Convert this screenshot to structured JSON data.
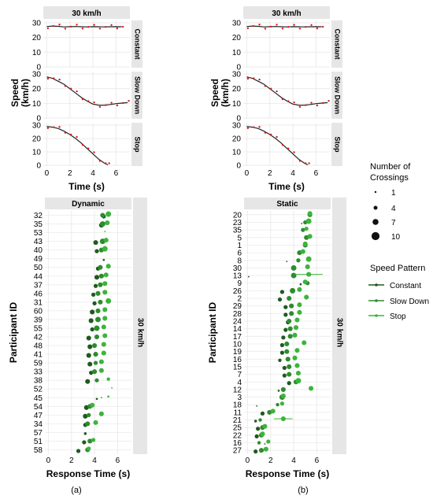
{
  "colors": {
    "strip": "#e6e6e6",
    "grid": "#ebebeb",
    "speed_fit": "#222222",
    "speed_points": "#d81b1b",
    "constant": "#1f5a1f",
    "slow_down": "#2e8b2e",
    "stop": "#3cb43c"
  },
  "legend": {
    "size_title_1": "Number of",
    "size_title_2": "Crossings",
    "size_labels": [
      "1",
      "4",
      "7",
      "10"
    ],
    "pattern_title": "Speed Pattern",
    "pattern_labels": [
      "Constant",
      "Slow Down",
      "Stop"
    ]
  },
  "captions": [
    "(a)",
    "(b)"
  ],
  "chart_data": [
    {
      "type": "line",
      "panel": "(a) top",
      "title": "30 km/h",
      "xlabel": "Time (s)",
      "ylabel": "Speed (km/h)",
      "facets": [
        "Constant",
        "Slow Down",
        "Stop"
      ],
      "xlim": [
        -0.3,
        7.2
      ],
      "ylim": [
        0,
        30
      ],
      "xticks": [
        "0",
        "2",
        "4",
        "6"
      ],
      "yticks": [
        "0",
        "10",
        "20",
        "30"
      ],
      "series": [
        {
          "facet": "Constant",
          "x": [
            0,
            0.5,
            1,
            1.5,
            2,
            2.5,
            3,
            3.5,
            4,
            4.5,
            5,
            5.5,
            6,
            6.5
          ],
          "values": [
            27.5,
            27.8,
            27.6,
            27.2,
            27.4,
            27.5,
            27.3,
            27.2,
            27.4,
            27.3,
            27.2,
            27.3,
            27.4,
            27.3
          ]
        },
        {
          "facet": "Slow Down",
          "x": [
            0,
            0.5,
            1,
            1.5,
            2,
            2.5,
            3,
            3.5,
            4,
            4.5,
            5,
            5.5,
            6,
            6.5,
            7
          ],
          "values": [
            28,
            27,
            25,
            23,
            20,
            17,
            14,
            11.5,
            9.5,
            8.8,
            8.8,
            9.2,
            9.8,
            10.2,
            10.5
          ]
        },
        {
          "facet": "Stop",
          "x": [
            0,
            0.5,
            1,
            1.5,
            2,
            2.5,
            3,
            3.5,
            4,
            4.5,
            5,
            5.3
          ],
          "values": [
            29,
            28.5,
            27.5,
            25.5,
            23,
            20,
            16.5,
            12.5,
            8.5,
            4.5,
            1.5,
            0.3
          ]
        }
      ]
    },
    {
      "type": "line",
      "panel": "(b) top",
      "title": "30 km/h",
      "xlabel": "Time (s)",
      "ylabel": "Speed (km/h)",
      "facets": [
        "Constant",
        "Slow Down",
        "Stop"
      ],
      "xlim": [
        -0.3,
        7.2
      ],
      "ylim": [
        0,
        30
      ],
      "xticks": [
        "0",
        "2",
        "4",
        "6"
      ],
      "yticks": [
        "0",
        "10",
        "20",
        "30"
      ],
      "series": [
        {
          "facet": "Constant",
          "x": [
            0,
            0.5,
            1,
            1.5,
            2,
            2.5,
            3,
            3.5,
            4,
            4.5,
            5,
            5.5,
            6,
            6.5
          ],
          "values": [
            27.5,
            27.8,
            27.6,
            27.2,
            27.4,
            27.5,
            27.3,
            27.2,
            27.4,
            27.3,
            27.2,
            27.3,
            27.4,
            27.3
          ]
        },
        {
          "facet": "Slow Down",
          "x": [
            0,
            0.5,
            1,
            1.5,
            2,
            2.5,
            3,
            3.5,
            4,
            4.5,
            5,
            5.5,
            6,
            6.5,
            7
          ],
          "values": [
            28,
            27,
            25,
            23,
            20,
            17,
            14,
            11.5,
            9.5,
            8.8,
            8.8,
            9.2,
            9.8,
            10.2,
            10.5
          ]
        },
        {
          "facet": "Stop",
          "x": [
            0,
            0.5,
            1,
            1.5,
            2,
            2.5,
            3,
            3.5,
            4,
            4.5,
            5,
            5.3
          ],
          "values": [
            29,
            28.5,
            27.5,
            25.5,
            23,
            20,
            16.5,
            12.5,
            8.5,
            4.5,
            1.5,
            0.3
          ]
        }
      ]
    },
    {
      "type": "scatter",
      "panel": "(a) bottom",
      "title": "Dynamic",
      "facet_label": "30 km/h",
      "xlabel": "Response Time (s)",
      "ylabel": "Participant ID",
      "xlim": [
        -0.3,
        7.2
      ],
      "xticks": [
        "0",
        "2",
        "4",
        "6"
      ],
      "categories": [
        "32",
        "35",
        "53",
        "43",
        "40",
        "49",
        "50",
        "44",
        "37",
        "46",
        "31",
        "60",
        "39",
        "55",
        "42",
        "48",
        "41",
        "59",
        "33",
        "38",
        "52",
        "45",
        "54",
        "47",
        "34",
        "57",
        "51",
        "58"
      ],
      "series": [
        {
          "name": "Constant",
          "values": [
            4.8,
            4.6,
            null,
            4.1,
            4.2,
            4.8,
            4.3,
            4.2,
            4.1,
            3.9,
            4.0,
            3.8,
            3.7,
            3.8,
            3.5,
            3.6,
            3.5,
            3.6,
            3.7,
            3.4,
            null,
            4.2,
            3.3,
            3.2,
            3.2,
            3.2,
            3.1,
            2.6
          ],
          "counts": [
            5,
            6,
            0,
            6,
            5,
            2,
            5,
            6,
            5,
            5,
            5,
            6,
            6,
            5,
            6,
            6,
            6,
            6,
            5,
            6,
            0,
            2,
            6,
            6,
            5,
            3,
            5,
            5
          ]
        },
        {
          "name": "Slow Down",
          "values": [
            4.7,
            4.7,
            null,
            4.7,
            4.6,
            4.7,
            4.5,
            4.6,
            4.5,
            4.3,
            4.5,
            4.3,
            4.3,
            4.2,
            4.2,
            4.0,
            4.1,
            4.1,
            4.0,
            4.2,
            null,
            4.6,
            3.6,
            3.5,
            3.4,
            3.3,
            3.6,
            3.4
          ],
          "counts": [
            6,
            7,
            0,
            7,
            6,
            0,
            6,
            6,
            6,
            6,
            6,
            6,
            7,
            7,
            6,
            6,
            6,
            5,
            6,
            5,
            0,
            1,
            6,
            5,
            6,
            0,
            6,
            6
          ]
        },
        {
          "name": "Stop",
          "values": [
            5.2,
            5.1,
            4.9,
            5.0,
            4.9,
            null,
            5.2,
            5.0,
            4.9,
            4.9,
            5.2,
            4.9,
            4.9,
            4.8,
            4.9,
            4.8,
            4.8,
            4.6,
            4.6,
            5.2,
            5.5,
            5.2,
            3.8,
            4.6,
            4.1,
            null,
            3.9,
            3.5
          ],
          "counts": [
            7,
            6,
            1,
            6,
            7,
            0,
            6,
            6,
            6,
            6,
            7,
            6,
            6,
            6,
            6,
            6,
            6,
            6,
            6,
            4,
            1,
            2,
            6,
            6,
            6,
            0,
            5,
            5
          ]
        }
      ]
    },
    {
      "type": "scatter",
      "panel": "(b) bottom",
      "title": "Static",
      "facet_label": "30 km/h",
      "xlabel": "Response Time (s)",
      "ylabel": "Participant ID",
      "xlim": [
        -0.3,
        7.2
      ],
      "xticks": [
        "0",
        "2",
        "4",
        "6"
      ],
      "categories": [
        "20",
        "23",
        "35",
        "5",
        "1",
        "6",
        "8",
        "30",
        "13",
        "9",
        "26",
        "2",
        "29",
        "28",
        "24",
        "14",
        "17",
        "10",
        "19",
        "16",
        "15",
        "7",
        "4",
        "12",
        "3",
        "18",
        "11",
        "21",
        "25",
        "22",
        "16",
        "27"
      ],
      "series": [
        {
          "name": "Constant",
          "values": [
            null,
            4.7,
            null,
            null,
            null,
            null,
            3.4,
            null,
            0.1,
            4.6,
            3.0,
            2.8,
            3.3,
            3.3,
            3.5,
            3.3,
            3.1,
            3.0,
            3.0,
            2.8,
            3.2,
            3.2,
            3.6,
            2.7,
            null,
            0.8,
            1.3,
            0.7,
            0.9,
            0.8,
            1.5,
            0.7
          ],
          "counts": [
            0,
            1,
            0,
            0,
            0,
            0,
            1,
            0,
            1,
            2,
            5,
            5,
            5,
            5,
            5,
            5,
            5,
            5,
            5,
            4,
            5,
            5,
            5,
            2,
            0,
            1,
            5,
            3,
            5,
            5,
            1,
            5
          ]
        },
        {
          "name": "Slow Down",
          "values": [
            5.4,
            5.0,
            4.8,
            5.1,
            5.0,
            4.5,
            4.4,
            4.0,
            4.0,
            5.2,
            3.9,
            3.6,
            3.8,
            3.8,
            3.6,
            3.7,
            3.7,
            3.4,
            3.4,
            3.5,
            3.6,
            3.6,
            4.2,
            3.1,
            3.0,
            2.6,
            1.9,
            1.1,
            1.3,
            1.2,
            1.0,
            1.2
          ],
          "counts": [
            6,
            5,
            5,
            6,
            6,
            6,
            5,
            7,
            7,
            5,
            7,
            6,
            6,
            6,
            6,
            6,
            6,
            6,
            6,
            6,
            6,
            6,
            6,
            6,
            7,
            4,
            6,
            4,
            6,
            6,
            4,
            6
          ]
        },
        {
          "name": "Stop",
          "values": [
            5.4,
            5.3,
            5.1,
            5.4,
            5.0,
            4.8,
            5.3,
            5.2,
            5.3,
            5.0,
            4.5,
            5.1,
            4.5,
            4.5,
            4.3,
            4.2,
            4.1,
            4.9,
            4.3,
            4.1,
            4.3,
            4.4,
            4.4,
            5.5,
            3.1,
            3.0,
            2.2,
            3.1,
            1.5,
            1.3,
            1.8,
            1.6
          ],
          "counts": [
            6,
            7,
            5,
            6,
            6,
            6,
            7,
            6,
            6,
            6,
            6,
            6,
            6,
            6,
            6,
            6,
            6,
            6,
            6,
            6,
            6,
            6,
            7,
            6,
            6,
            5,
            6,
            6,
            6,
            6,
            5,
            6
          ],
          "error": [
            0,
            0,
            0,
            0,
            0,
            0,
            0,
            0,
            1.2,
            0,
            0,
            0,
            0,
            0,
            0,
            0,
            0,
            0,
            0,
            0,
            0,
            0,
            0,
            0,
            0,
            0,
            0,
            0.8,
            0,
            0,
            0,
            0
          ]
        }
      ]
    }
  ]
}
